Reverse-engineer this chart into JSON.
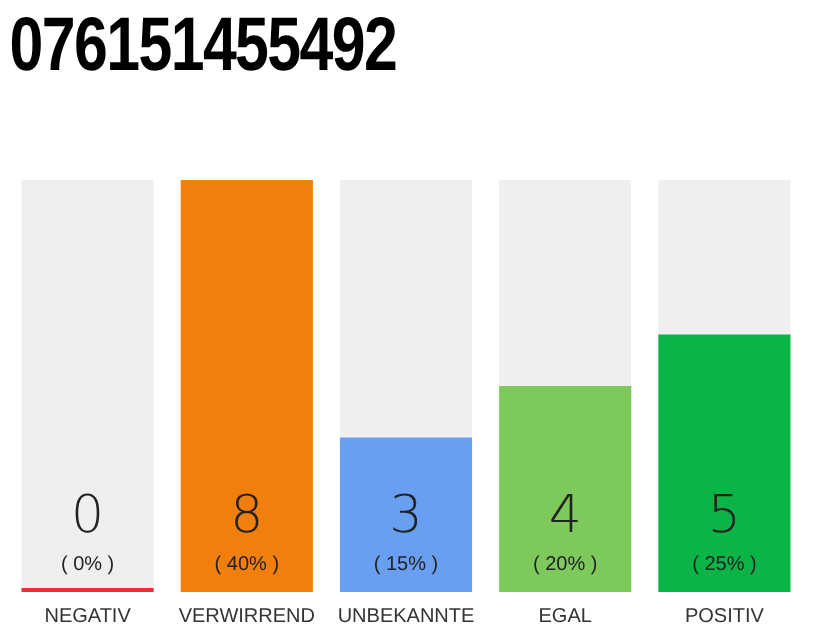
{
  "chart_data": {
    "type": "bar",
    "title": "076151455492",
    "categories": [
      "NEGATIV",
      "VERWIRREND",
      "UNBEKANNTE",
      "EGAL",
      "POSITIV"
    ],
    "values": [
      0,
      40,
      15,
      20,
      25
    ],
    "colors": [
      "#e8303a",
      "#f07f0e",
      "#689ff0",
      "#7ec95c",
      "#0ab446"
    ],
    "value_labels": [
      "0\n( 0% )",
      "8\n( 40% )",
      "3\n( 15% )",
      "4\n( 20% )",
      "5\n( 25% )"
    ],
    "grid": false,
    "legend": false
  }
}
